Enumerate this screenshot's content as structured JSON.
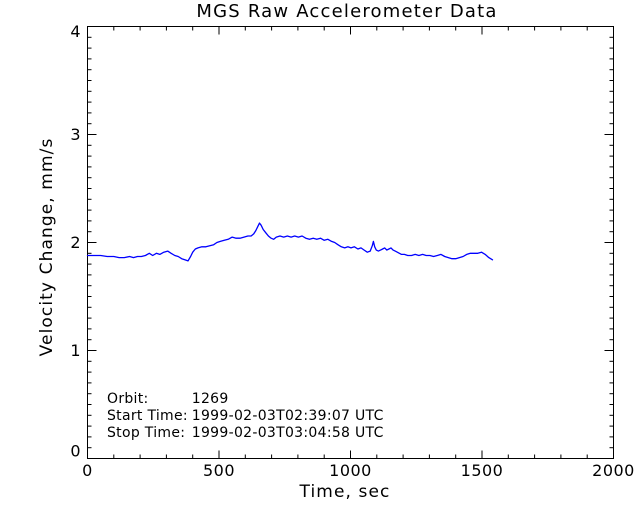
{
  "chart_data": {
    "type": "line",
    "title": "MGS Raw Accelerometer Data",
    "xlabel": "Time, sec",
    "ylabel": "Velocity Change, mm/s",
    "xlim": [
      0,
      2000
    ],
    "ylim": [
      0,
      4
    ],
    "xticks_major": [
      0,
      500,
      1000,
      1500,
      2000
    ],
    "xtick_minor_step": 100,
    "yticks_major": [
      0,
      1,
      2,
      3,
      4
    ],
    "ytick_minor_step": 0.1,
    "grid": false,
    "legend": "none",
    "line_color": "#0000ff",
    "series": [
      {
        "name": "velocity-change",
        "points": [
          [
            0,
            1.88
          ],
          [
            25,
            1.88
          ],
          [
            50,
            1.88
          ],
          [
            75,
            1.87
          ],
          [
            100,
            1.87
          ],
          [
            120,
            1.86
          ],
          [
            140,
            1.86
          ],
          [
            160,
            1.87
          ],
          [
            175,
            1.86
          ],
          [
            190,
            1.87
          ],
          [
            205,
            1.87
          ],
          [
            220,
            1.88
          ],
          [
            235,
            1.9
          ],
          [
            248,
            1.88
          ],
          [
            262,
            1.9
          ],
          [
            275,
            1.89
          ],
          [
            290,
            1.91
          ],
          [
            305,
            1.92
          ],
          [
            318,
            1.9
          ],
          [
            332,
            1.88
          ],
          [
            345,
            1.87
          ],
          [
            358,
            1.85
          ],
          [
            370,
            1.84
          ],
          [
            382,
            1.83
          ],
          [
            392,
            1.87
          ],
          [
            400,
            1.91
          ],
          [
            410,
            1.94
          ],
          [
            420,
            1.95
          ],
          [
            435,
            1.96
          ],
          [
            450,
            1.96
          ],
          [
            465,
            1.97
          ],
          [
            480,
            1.98
          ],
          [
            492,
            2.0
          ],
          [
            505,
            2.01
          ],
          [
            520,
            2.02
          ],
          [
            535,
            2.03
          ],
          [
            550,
            2.05
          ],
          [
            565,
            2.04
          ],
          [
            580,
            2.04
          ],
          [
            595,
            2.05
          ],
          [
            610,
            2.06
          ],
          [
            622,
            2.06
          ],
          [
            632,
            2.08
          ],
          [
            640,
            2.11
          ],
          [
            648,
            2.15
          ],
          [
            654,
            2.18
          ],
          [
            660,
            2.16
          ],
          [
            668,
            2.12
          ],
          [
            678,
            2.09
          ],
          [
            688,
            2.06
          ],
          [
            698,
            2.04
          ],
          [
            708,
            2.03
          ],
          [
            718,
            2.05
          ],
          [
            732,
            2.06
          ],
          [
            746,
            2.05
          ],
          [
            760,
            2.06
          ],
          [
            774,
            2.05
          ],
          [
            788,
            2.06
          ],
          [
            802,
            2.05
          ],
          [
            816,
            2.06
          ],
          [
            830,
            2.04
          ],
          [
            844,
            2.03
          ],
          [
            858,
            2.04
          ],
          [
            872,
            2.03
          ],
          [
            886,
            2.04
          ],
          [
            900,
            2.02
          ],
          [
            914,
            2.03
          ],
          [
            928,
            2.01
          ],
          [
            940,
            2.0
          ],
          [
            952,
            1.98
          ],
          [
            965,
            1.96
          ],
          [
            978,
            1.95
          ],
          [
            990,
            1.96
          ],
          [
            1002,
            1.95
          ],
          [
            1015,
            1.96
          ],
          [
            1028,
            1.94
          ],
          [
            1040,
            1.95
          ],
          [
            1052,
            1.93
          ],
          [
            1064,
            1.91
          ],
          [
            1075,
            1.92
          ],
          [
            1083,
            1.97
          ],
          [
            1087,
            2.01
          ],
          [
            1092,
            1.96
          ],
          [
            1098,
            1.93
          ],
          [
            1106,
            1.92
          ],
          [
            1114,
            1.93
          ],
          [
            1122,
            1.94
          ],
          [
            1130,
            1.95
          ],
          [
            1138,
            1.93
          ],
          [
            1146,
            1.94
          ],
          [
            1154,
            1.95
          ],
          [
            1162,
            1.93
          ],
          [
            1170,
            1.92
          ],
          [
            1178,
            1.91
          ],
          [
            1186,
            1.9
          ],
          [
            1194,
            1.89
          ],
          [
            1205,
            1.89
          ],
          [
            1218,
            1.88
          ],
          [
            1232,
            1.88
          ],
          [
            1246,
            1.89
          ],
          [
            1260,
            1.88
          ],
          [
            1274,
            1.89
          ],
          [
            1288,
            1.88
          ],
          [
            1302,
            1.88
          ],
          [
            1316,
            1.87
          ],
          [
            1330,
            1.88
          ],
          [
            1344,
            1.89
          ],
          [
            1358,
            1.87
          ],
          [
            1372,
            1.86
          ],
          [
            1386,
            1.85
          ],
          [
            1400,
            1.85
          ],
          [
            1414,
            1.86
          ],
          [
            1428,
            1.87
          ],
          [
            1442,
            1.89
          ],
          [
            1456,
            1.9
          ],
          [
            1470,
            1.9
          ],
          [
            1484,
            1.9
          ],
          [
            1498,
            1.91
          ],
          [
            1512,
            1.89
          ],
          [
            1526,
            1.86
          ],
          [
            1540,
            1.84
          ]
        ]
      }
    ]
  },
  "annotations": [
    {
      "label": "Orbit:",
      "value": "1269"
    },
    {
      "label": "Start Time:",
      "value": "1999-02-03T02:39:07 UTC"
    },
    {
      "label": "Stop Time:",
      "value": "1999-02-03T03:04:58 UTC"
    }
  ],
  "colors": {
    "background": "#ffffff",
    "foreground": "#000000",
    "data_line": "#0000ff"
  }
}
